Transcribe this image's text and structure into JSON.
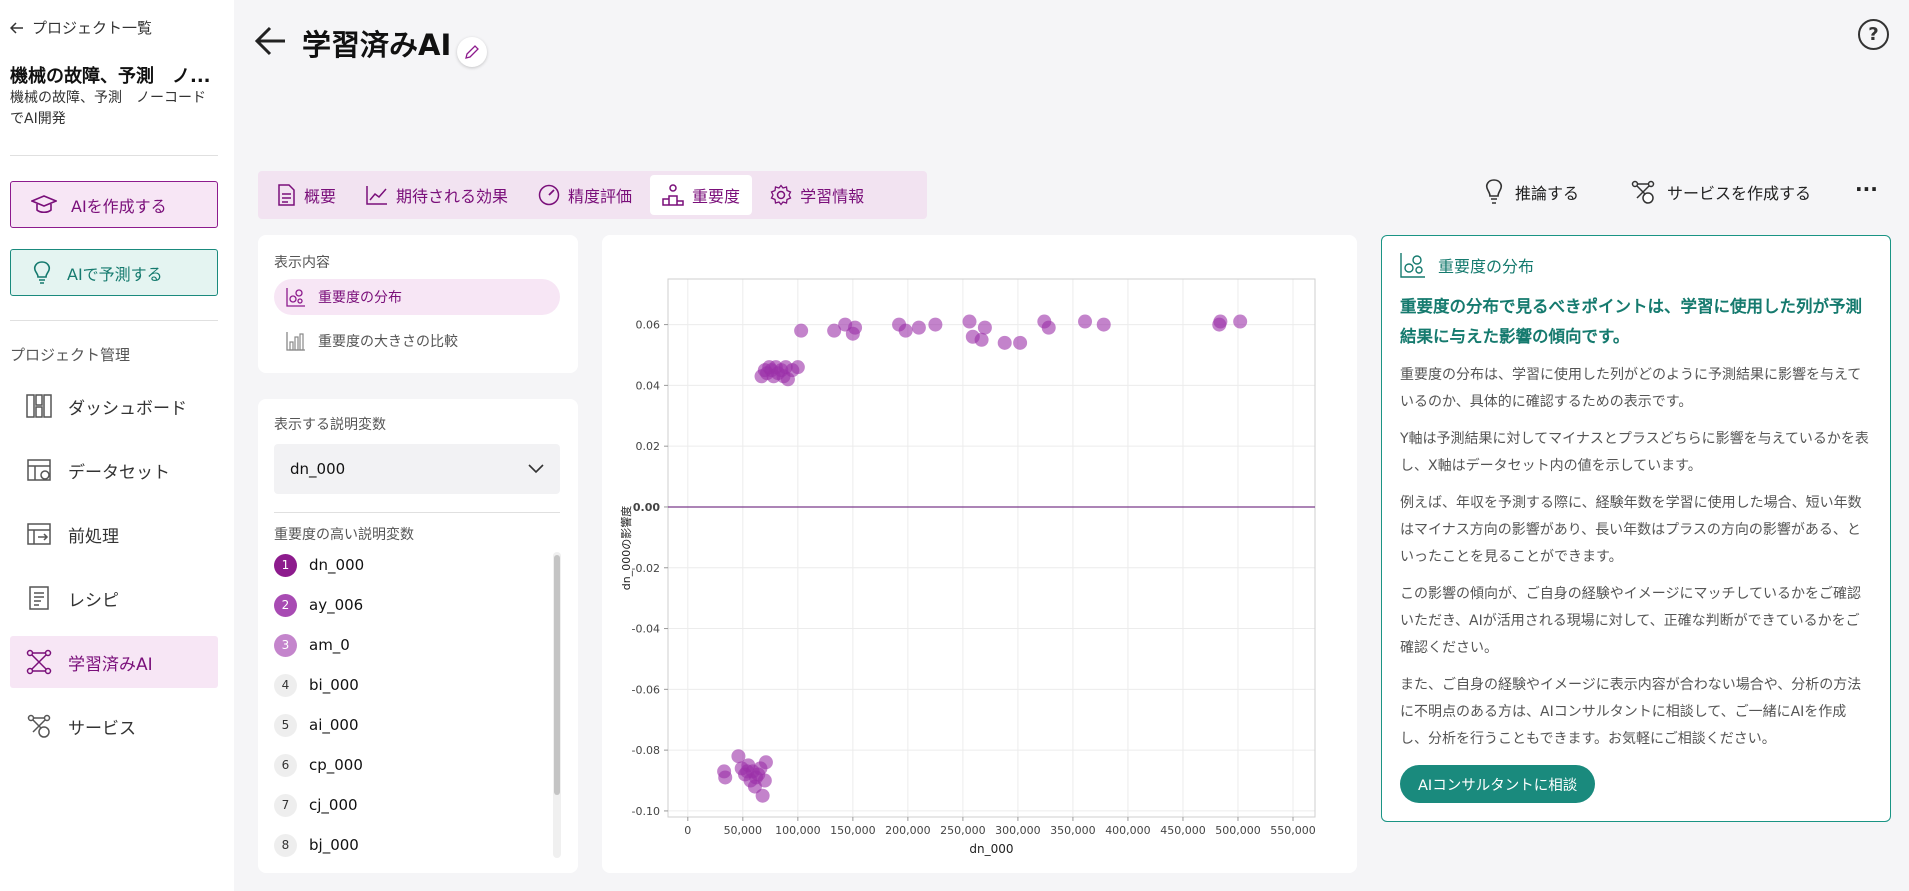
{
  "sidebar": {
    "back_label": "プロジェクト一覧",
    "project_title": "機械の故障、予測　ノ...",
    "project_desc": "機械の故障、予測　ノーコードでAI開発",
    "create_ai": "AIを作成する",
    "predict_ai": "AIで予測する",
    "section_label": "プロジェクト管理",
    "items": [
      {
        "label": "ダッシュボード",
        "icon": "dashboard-icon"
      },
      {
        "label": "データセット",
        "icon": "dataset-icon"
      },
      {
        "label": "前処理",
        "icon": "preprocess-icon"
      },
      {
        "label": "レシピ",
        "icon": "recipe-icon"
      },
      {
        "label": "学習済みAI",
        "icon": "trained-ai-icon",
        "active": true
      },
      {
        "label": "サービス",
        "icon": "service-icon"
      }
    ]
  },
  "header": {
    "title": "学習済みAI"
  },
  "tabs": [
    {
      "label": "概要",
      "icon": "document-icon"
    },
    {
      "label": "期待される効果",
      "icon": "trend-icon"
    },
    {
      "label": "精度評価",
      "icon": "gauge-icon"
    },
    {
      "label": "重要度",
      "icon": "podium-icon",
      "active": true
    },
    {
      "label": "学習情報",
      "icon": "gear-icon"
    }
  ],
  "actions": {
    "infer": "推論する",
    "create_service": "サービスを作成する",
    "more": "..."
  },
  "view_panel": {
    "label": "表示内容",
    "options": [
      {
        "label": "重要度の分布",
        "active": true
      },
      {
        "label": "重要度の大きさの比較",
        "active": false
      }
    ]
  },
  "variable_panel": {
    "label": "表示する説明変数",
    "selected": "dn_000",
    "ranking_label": "重要度の高い説明変数",
    "ranking": [
      {
        "rank": "1",
        "name": "dn_000"
      },
      {
        "rank": "2",
        "name": "ay_006"
      },
      {
        "rank": "3",
        "name": "am_0"
      },
      {
        "rank": "4",
        "name": "bi_000"
      },
      {
        "rank": "5",
        "name": "ai_000"
      },
      {
        "rank": "6",
        "name": "cp_000"
      },
      {
        "rank": "7",
        "name": "cj_000"
      },
      {
        "rank": "8",
        "name": "bj_000"
      }
    ]
  },
  "info": {
    "title": "重要度の分布",
    "lead": "重要度の分布で見るべきポイントは、学習に使用した列が予測結果に与えた影響の傾向です。",
    "paragraphs": [
      "重要度の分布は、学習に使用した列がどのように予測結果に影響を与えているのか、具体的に確認するための表示です。",
      "Y軸は予測結果に対してマイナスとプラスどちらに影響を与えているかを表し、X軸はデータセット内の値を示しています。",
      "例えば、年収を予測する際に、経験年数を学習に使用した場合、短い年数はマイナス方向の影響があり、長い年数はプラスの方向の影響がある、といったことを見ることができます。",
      "この影響の傾向が、ご自身の経験やイメージにマッチしているかをご確認いただき、AIが活用される現場に対して、正確な判断ができているかをご確認ください。",
      "また、ご自身の経験やイメージに表示内容が合わない場合や、分析の方法に不明点のある方は、AIコンサルタントに相談して、ご一緒にAIを作成し、分析を行うこともできます。お気軽にご相談ください。"
    ],
    "button": "AIコンサルタントに相談"
  },
  "colors": {
    "accent": "#8d1b8d",
    "teal": "#1a8a7d",
    "point": "#9b30a8"
  },
  "chart_data": {
    "type": "scatter",
    "xlabel": "dn_000",
    "ylabel": "dn_000の影響度",
    "xlim": [
      -18000,
      570000
    ],
    "ylim": [
      -0.102,
      0.075
    ],
    "xticks": [
      0,
      50000,
      100000,
      150000,
      200000,
      250000,
      300000,
      350000,
      400000,
      450000,
      500000,
      550000
    ],
    "xtick_labels": [
      "0",
      "50,000",
      "100,000",
      "150,000",
      "200,000",
      "250,000",
      "300,000",
      "350,000",
      "400,000",
      "450,000",
      "500,000",
      "550,000"
    ],
    "yticks": [
      -0.1,
      -0.08,
      -0.06,
      -0.04,
      -0.02,
      0.0,
      0.02,
      0.04,
      0.06
    ],
    "ytick_labels": [
      "-0.10",
      "-0.08",
      "-0.06",
      "-0.04",
      "-0.02",
      "0.00",
      "0.02",
      "0.04",
      "0.06"
    ],
    "zero_line": true,
    "grid": true,
    "points": [
      [
        67000,
        0.043
      ],
      [
        70000,
        0.045
      ],
      [
        72000,
        0.044
      ],
      [
        74000,
        0.046
      ],
      [
        76000,
        0.045
      ],
      [
        78000,
        0.043
      ],
      [
        80000,
        0.046
      ],
      [
        82000,
        0.044
      ],
      [
        85000,
        0.045
      ],
      [
        87000,
        0.043
      ],
      [
        89000,
        0.046
      ],
      [
        91000,
        0.042
      ],
      [
        95000,
        0.045
      ],
      [
        100000,
        0.046
      ],
      [
        103000,
        0.058
      ],
      [
        133000,
        0.058
      ],
      [
        143000,
        0.06
      ],
      [
        150000,
        0.057
      ],
      [
        152000,
        0.059
      ],
      [
        192000,
        0.06
      ],
      [
        198000,
        0.058
      ],
      [
        210000,
        0.059
      ],
      [
        225000,
        0.06
      ],
      [
        256000,
        0.061
      ],
      [
        259000,
        0.056
      ],
      [
        267000,
        0.055
      ],
      [
        270000,
        0.059
      ],
      [
        288000,
        0.054
      ],
      [
        302000,
        0.054
      ],
      [
        324000,
        0.061
      ],
      [
        328000,
        0.059
      ],
      [
        361000,
        0.061
      ],
      [
        378000,
        0.06
      ],
      [
        483000,
        0.06
      ],
      [
        484000,
        0.061
      ],
      [
        502000,
        0.061
      ],
      [
        33000,
        -0.087
      ],
      [
        34000,
        -0.089
      ],
      [
        46000,
        -0.082
      ],
      [
        49000,
        -0.086
      ],
      [
        52000,
        -0.088
      ],
      [
        55000,
        -0.085
      ],
      [
        57000,
        -0.09
      ],
      [
        59000,
        -0.087
      ],
      [
        61000,
        -0.092
      ],
      [
        64000,
        -0.088
      ],
      [
        66000,
        -0.086
      ],
      [
        68000,
        -0.095
      ],
      [
        70000,
        -0.09
      ],
      [
        71000,
        -0.084
      ],
      [
        62000,
        -0.089
      ],
      [
        54000,
        -0.087
      ]
    ]
  }
}
